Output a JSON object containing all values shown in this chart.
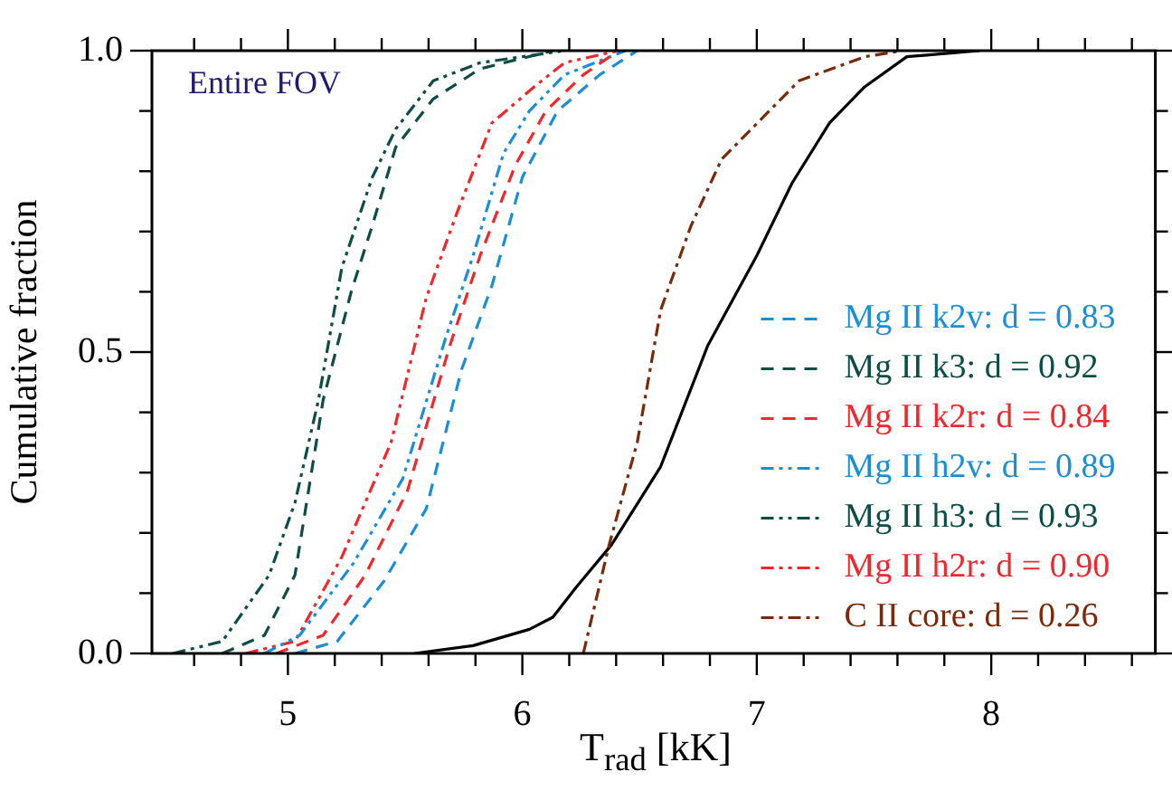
{
  "chart_data": {
    "type": "line",
    "xlabel": "T$_{rad}$ [kK]",
    "ylabel": "Cumulative fraction",
    "annotations": [
      "Entire FOV"
    ],
    "xlim": [
      4.42,
      8.7
    ],
    "ylim": [
      0,
      1
    ],
    "xticks": [
      {
        "value": 4.6,
        "label": null
      },
      {
        "value": 4.8,
        "label": null
      },
      5,
      {
        "value": 5.2,
        "label": null
      },
      {
        "value": 5.4,
        "label": null
      },
      {
        "value": 5.6,
        "label": null
      },
      {
        "value": 5.8,
        "label": null
      },
      6,
      {
        "value": 6.2,
        "label": null
      },
      {
        "value": 6.4,
        "label": null
      },
      {
        "value": 6.6,
        "label": null
      },
      {
        "value": 6.8,
        "label": null
      },
      7,
      {
        "value": 7.2,
        "label": null
      },
      {
        "value": 7.4,
        "label": null
      },
      {
        "value": 7.6,
        "label": null
      },
      {
        "value": 7.8,
        "label": null
      },
      8,
      {
        "value": 8.2,
        "label": null
      },
      {
        "value": 8.4,
        "label": null
      },
      {
        "value": 8.6,
        "label": null
      }
    ],
    "yticks": [
      {
        "value": 0,
        "label": "0.0"
      },
      {
        "value": 0.1,
        "label": null
      },
      {
        "value": 0.2,
        "label": null
      },
      {
        "value": 0.3,
        "label": null
      },
      {
        "value": 0.4,
        "label": null
      },
      {
        "value": 0.5,
        "label": "0.5"
      },
      {
        "value": 0.6,
        "label": null
      },
      {
        "value": 0.7,
        "label": null
      },
      {
        "value": 0.8,
        "label": null
      },
      {
        "value": 0.9,
        "label": null
      },
      {
        "value": 1,
        "label": "1.0"
      }
    ],
    "grid": false,
    "legend": "bottom right",
    "marker": "none",
    "series": [
      {
        "name": "Mg II k2v: d = 0.83",
        "color": "#1a8fd6",
        "line_style": "dashed",
        "x": [
          5.03,
          5.21,
          5.41,
          5.59,
          5.74,
          5.87,
          6.0,
          6.15,
          6.33,
          6.49
        ],
        "values": [
          0,
          0.02,
          0.12,
          0.24,
          0.47,
          0.61,
          0.79,
          0.9,
          0.96,
          1.0
        ]
      },
      {
        "name": "Mg II k3: d = 0.92",
        "color": "#0d4d45",
        "line_style": "dashed",
        "x": [
          4.72,
          4.9,
          5.03,
          5.15,
          5.27,
          5.36,
          5.46,
          5.62,
          5.82,
          6.13
        ],
        "values": [
          0,
          0.03,
          0.13,
          0.42,
          0.6,
          0.71,
          0.84,
          0.92,
          0.97,
          1.0
        ]
      },
      {
        "name": "Mg II k2r: d = 0.84",
        "color": "#f0282d",
        "line_style": "dashed",
        "x": [
          4.95,
          5.15,
          5.33,
          5.51,
          5.69,
          5.82,
          5.97,
          6.1,
          6.26,
          6.41
        ],
        "values": [
          0,
          0.03,
          0.13,
          0.27,
          0.51,
          0.66,
          0.81,
          0.9,
          0.96,
          1.0
        ]
      },
      {
        "name": "Mg II h2v: d = 0.89",
        "color": "#1a8fd6",
        "line_style": "dashdotdot",
        "x": [
          4.9,
          5.05,
          5.28,
          5.49,
          5.67,
          5.79,
          5.92,
          6.03,
          6.18,
          6.44
        ],
        "values": [
          0,
          0.03,
          0.15,
          0.29,
          0.52,
          0.66,
          0.83,
          0.9,
          0.96,
          1.0
        ]
      },
      {
        "name": "Mg II h3: d = 0.93",
        "color": "#0d4d45",
        "line_style": "dashdotdot",
        "x": [
          4.51,
          4.72,
          4.92,
          5.03,
          5.13,
          5.23,
          5.36,
          5.46,
          5.62,
          5.82,
          6.18
        ],
        "values": [
          0,
          0.02,
          0.13,
          0.25,
          0.42,
          0.64,
          0.79,
          0.87,
          0.95,
          0.98,
          1.0
        ]
      },
      {
        "name": "Mg II h2r: d = 0.90",
        "color": "#f0282d",
        "line_style": "dashdotdot",
        "x": [
          4.82,
          5.03,
          5.23,
          5.44,
          5.59,
          5.72,
          5.87,
          6.05,
          6.18,
          6.41
        ],
        "values": [
          0,
          0.02,
          0.16,
          0.35,
          0.59,
          0.73,
          0.88,
          0.94,
          0.98,
          1.0
        ]
      },
      {
        "name": "C II core: d = 0.26",
        "color": "#7a2a0a",
        "line_style": "dashdot",
        "x": [
          6.26,
          6.37,
          6.49,
          6.59,
          6.72,
          6.85,
          7.18,
          7.46,
          7.62
        ],
        "values": [
          0,
          0.18,
          0.35,
          0.57,
          0.71,
          0.82,
          0.95,
          0.99,
          1.0
        ]
      },
      {
        "color": "#000000",
        "line_style": "solid",
        "x": [
          5.54,
          5.79,
          6.03,
          6.13,
          6.23,
          6.38,
          6.59,
          6.79,
          7.0,
          7.15,
          7.31,
          7.46,
          7.64,
          7.95
        ],
        "values": [
          0,
          0.013,
          0.04,
          0.06,
          0.11,
          0.18,
          0.31,
          0.51,
          0.66,
          0.78,
          0.88,
          0.94,
          0.99,
          1.0
        ]
      }
    ]
  }
}
